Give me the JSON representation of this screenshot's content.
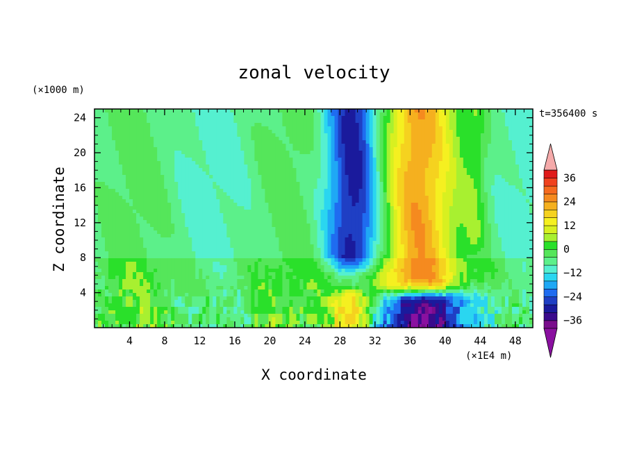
{
  "chart_data": {
    "type": "heatmap",
    "title": "zonal velocity",
    "xlabel": "X coordinate",
    "ylabel": "Z coordinate",
    "x_units": "(×1E4 m)",
    "z_units": "(×1000 m)",
    "time_label": "t=356400 s",
    "xlim": [
      0,
      50
    ],
    "zlim": [
      0,
      25
    ],
    "x_ticks": [
      "4",
      "8",
      "12",
      "16",
      "20",
      "24",
      "28",
      "32",
      "36",
      "40",
      "44",
      "48"
    ],
    "z_ticks": [
      "4",
      "8",
      "12",
      "16",
      "20",
      "24"
    ],
    "colorbar": {
      "levels": [
        -40,
        -36,
        -32,
        -28,
        -24,
        -20,
        -16,
        -12,
        -8,
        -4,
        0,
        4,
        8,
        12,
        16,
        20,
        24,
        28,
        32,
        36,
        40
      ],
      "labels": [
        "36",
        "24",
        "12",
        "0",
        "−12",
        "−24",
        "−36"
      ],
      "colors": [
        "#7a0d8c",
        "#3a0a8c",
        "#1a1a9c",
        "#1f3fc4",
        "#1f6cf0",
        "#1fa8f5",
        "#2ad6f0",
        "#55f0d0",
        "#5cf08a",
        "#55e65a",
        "#2ae02a",
        "#a8f030",
        "#d8f020",
        "#f5f020",
        "#f5d21f",
        "#f5b01f",
        "#f58a1f",
        "#f56a1f",
        "#f0421f",
        "#e01a1a"
      ],
      "extend_low_color": "#8a10a0",
      "extend_high_color": "#f5aaaa"
    },
    "features": [
      {
        "description": "westerly jet aloft",
        "x_center": 36.5,
        "x_halfwidth": 3.5,
        "z_from": 5,
        "z_to": 25,
        "max_value": 28
      },
      {
        "description": "easterly jet aloft",
        "x_center": 29.5,
        "x_halfwidth": 2.5,
        "z_from": 8,
        "z_to": 25,
        "min_value": -22
      },
      {
        "description": "strong easterly near surface",
        "x_center": 38,
        "x_halfwidth": 4.5,
        "z_from": 0,
        "z_to": 3,
        "min_value": -38
      },
      {
        "description": "westerly near surface",
        "x_center": 29.5,
        "x_halfwidth": 2,
        "z_from": 0,
        "z_to": 3,
        "max_value": 24
      },
      {
        "description": "westerly band east",
        "x_center": 43.5,
        "x_halfwidth": 1,
        "z_from": 10,
        "z_to": 25,
        "max_value": 6
      }
    ]
  }
}
